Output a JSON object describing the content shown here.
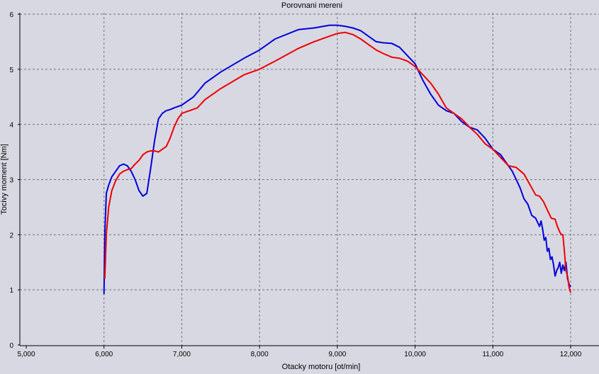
{
  "chart_data": {
    "type": "line",
    "title": "Porovnani mereni",
    "xlabel": "Otacky motoru [ot/min]",
    "ylabel": "Tocivy moment [Nm]",
    "xlim": [
      5000,
      12500
    ],
    "ylim": [
      0,
      6
    ],
    "xticks": [
      5000,
      6000,
      7000,
      8000,
      9000,
      10000,
      11000,
      12000
    ],
    "xtick_labels": [
      "5,000",
      "6,000",
      "7,000",
      "8,000",
      "9,000",
      "10,000",
      "11,000",
      "12,000"
    ],
    "yticks": [
      0,
      1,
      2,
      3,
      4,
      5,
      6
    ],
    "ytick_labels": [
      "0",
      "1",
      "2",
      "3",
      "4",
      "5",
      "6"
    ],
    "grid": true,
    "series": [
      {
        "color": "#0000dd",
        "x": [
          6000,
          6010,
          6030,
          6060,
          6100,
          6150,
          6200,
          6250,
          6300,
          6350,
          6400,
          6450,
          6500,
          6550,
          6600,
          6650,
          6700,
          6750,
          6800,
          6850,
          6900,
          7000,
          7150,
          7300,
          7500,
          7800,
          8000,
          8200,
          8500,
          8700,
          8900,
          9000,
          9100,
          9200,
          9300,
          9400,
          9500,
          9600,
          9700,
          9800,
          9900,
          10000,
          10100,
          10200,
          10300,
          10400,
          10500,
          10600,
          10700,
          10800,
          10900,
          11000,
          11100,
          11150,
          11200,
          11250,
          11300,
          11350,
          11400,
          11450,
          11500,
          11550,
          11600,
          11620,
          11640,
          11660,
          11680,
          11700,
          11720,
          11740,
          11760,
          11780,
          11800,
          11820,
          11840,
          11860,
          11880,
          11900,
          11920,
          11940,
          11960,
          11980,
          12000
        ],
        "y": [
          0.92,
          2.0,
          2.75,
          2.9,
          3.05,
          3.15,
          3.25,
          3.28,
          3.25,
          3.15,
          3.0,
          2.8,
          2.7,
          2.75,
          3.2,
          3.7,
          4.1,
          4.2,
          4.25,
          4.27,
          4.3,
          4.35,
          4.5,
          4.75,
          4.95,
          5.2,
          5.35,
          5.55,
          5.72,
          5.75,
          5.8,
          5.8,
          5.78,
          5.75,
          5.7,
          5.6,
          5.5,
          5.48,
          5.47,
          5.4,
          5.25,
          5.1,
          4.8,
          4.55,
          4.35,
          4.25,
          4.2,
          4.05,
          3.95,
          3.9,
          3.75,
          3.55,
          3.45,
          3.35,
          3.25,
          3.15,
          3.0,
          2.85,
          2.65,
          2.55,
          2.35,
          2.3,
          2.15,
          2.25,
          2.1,
          1.9,
          1.95,
          1.7,
          1.75,
          1.55,
          1.6,
          1.45,
          1.25,
          1.35,
          1.4,
          1.5,
          1.3,
          1.45,
          1.35,
          1.5,
          1.2,
          1.1,
          1.05
        ]
      },
      {
        "color": "#ee0000",
        "x": [
          6010,
          6030,
          6060,
          6100,
          6150,
          6200,
          6250,
          6300,
          6350,
          6400,
          6450,
          6500,
          6550,
          6600,
          6650,
          6700,
          6800,
          6850,
          6900,
          6950,
          7000,
          7100,
          7200,
          7300,
          7500,
          7800,
          8000,
          8200,
          8500,
          8700,
          8900,
          9000,
          9100,
          9200,
          9300,
          9400,
          9500,
          9600,
          9700,
          9800,
          9900,
          10000,
          10100,
          10200,
          10300,
          10400,
          10500,
          10600,
          10700,
          10800,
          10900,
          11000,
          11100,
          11200,
          11300,
          11400,
          11500,
          11550,
          11600,
          11650,
          11700,
          11750,
          11800,
          11830,
          11860,
          11880,
          11900,
          11920,
          11940,
          11960,
          11980,
          12000
        ],
        "y": [
          1.2,
          2.0,
          2.5,
          2.8,
          2.98,
          3.1,
          3.15,
          3.18,
          3.2,
          3.28,
          3.35,
          3.45,
          3.5,
          3.52,
          3.52,
          3.5,
          3.6,
          3.75,
          3.95,
          4.1,
          4.2,
          4.25,
          4.3,
          4.45,
          4.65,
          4.9,
          5.0,
          5.15,
          5.38,
          5.5,
          5.6,
          5.65,
          5.67,
          5.63,
          5.55,
          5.45,
          5.35,
          5.28,
          5.22,
          5.2,
          5.15,
          5.05,
          4.9,
          4.75,
          4.55,
          4.3,
          4.2,
          4.1,
          3.95,
          3.82,
          3.65,
          3.55,
          3.4,
          3.25,
          3.22,
          3.1,
          2.85,
          2.72,
          2.7,
          2.6,
          2.45,
          2.3,
          2.28,
          2.15,
          2.05,
          2.0,
          2.0,
          1.7,
          1.35,
          1.25,
          1.05,
          0.95
        ]
      }
    ]
  }
}
